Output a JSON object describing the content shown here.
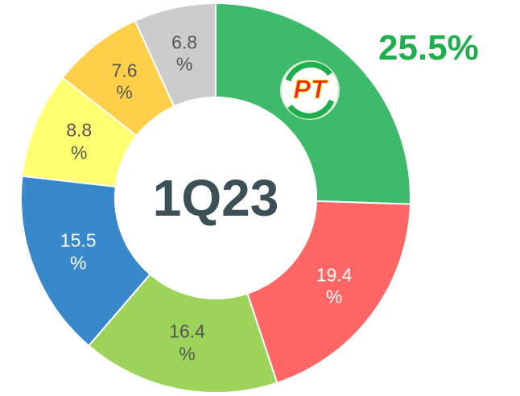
{
  "chart_data": {
    "type": "donut",
    "title": "1Q23",
    "logo_text": "PT",
    "values": [
      25.5,
      19.4,
      16.4,
      15.5,
      8.8,
      7.6,
      6.8
    ],
    "value_labels": [
      "25.5%",
      "19.4\n%",
      "16.4\n%",
      "15.5\n%",
      "8.8\n%",
      "7.6\n%",
      "6.8\n%"
    ],
    "colors": [
      "#3dba6a",
      "#ff6666",
      "#9dd35a",
      "#3a88cc",
      "#ffff70",
      "#ffcf4a",
      "#cccccc"
    ]
  }
}
